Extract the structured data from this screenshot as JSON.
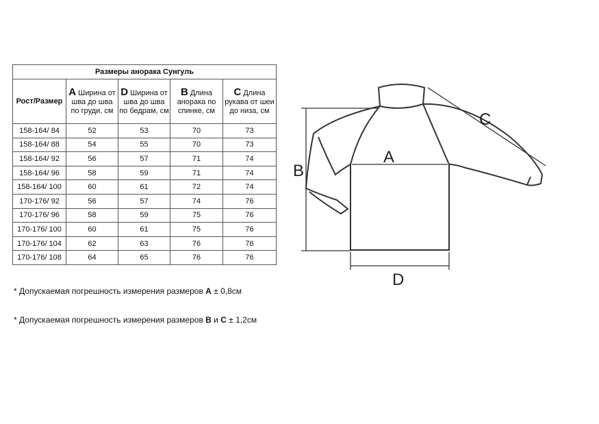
{
  "table": {
    "title": "Размеры анорака Сунгуль",
    "headers": [
      {
        "letter": "",
        "text": "Рост/Размер"
      },
      {
        "letter": "A",
        "text": " Ширина от шва до шва по груди, см"
      },
      {
        "letter": "D",
        "text": " Ширина от шва до шва по бедрам, см"
      },
      {
        "letter": "B",
        "text": " Длина анорака по спинке, см"
      },
      {
        "letter": "C",
        "text": " Длина рукава от  шеи до низа, см"
      }
    ],
    "rows": [
      [
        "158-164/ 84",
        "52",
        "53",
        "70",
        "73"
      ],
      [
        "158-164/ 88",
        "54",
        "55",
        "70",
        "73"
      ],
      [
        "158-164/ 92",
        "56",
        "57",
        "71",
        "74"
      ],
      [
        "158-164/ 96",
        "58",
        "59",
        "71",
        "74"
      ],
      [
        "158-164/ 100",
        "60",
        "61",
        "72",
        "74"
      ],
      [
        "170-176/ 92",
        "56",
        "57",
        "74",
        "76"
      ],
      [
        "170-176/ 96",
        "58",
        "59",
        "75",
        "76"
      ],
      [
        "170-176/ 100",
        "60",
        "61",
        "75",
        "76"
      ],
      [
        "170-176/ 104",
        "62",
        "63",
        "76",
        "76"
      ],
      [
        "170-176/ 108",
        "64",
        "65",
        "76",
        "76"
      ]
    ]
  },
  "notes": [
    {
      "prefix": "* Допускаемая погрешность измерения размеров ",
      "b1": "A",
      "mid": "",
      "b2": "",
      "suffix": " ± 0,8см"
    },
    {
      "prefix": "* Допускаемая погрешность измерения размеров ",
      "b1": "B",
      "mid": " и ",
      "b2": "C",
      "suffix": " ± 1,2см"
    }
  ],
  "diagram": {
    "labels": {
      "a": "A",
      "b": "B",
      "c": "C",
      "d": "D"
    }
  }
}
